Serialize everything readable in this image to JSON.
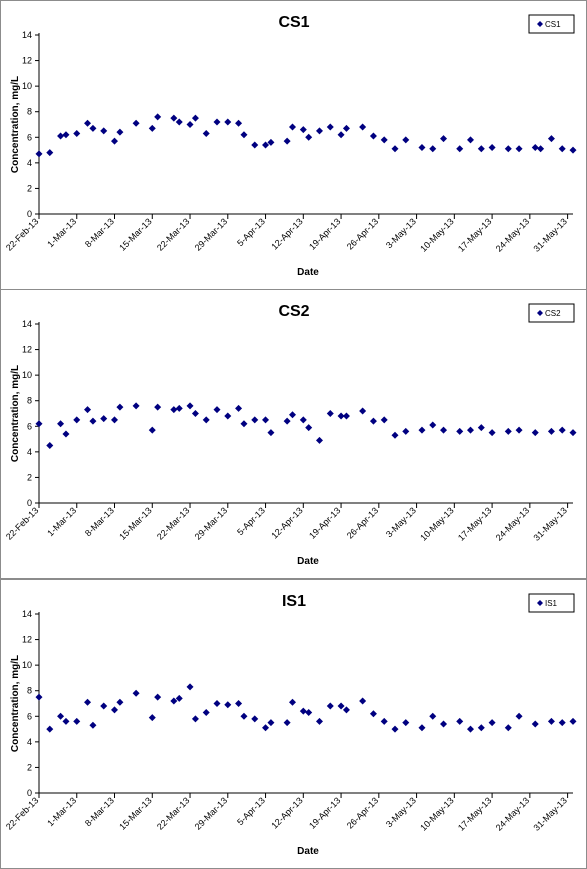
{
  "chart_data": [
    {
      "type": "scatter",
      "title": "CS1",
      "xlabel": "Date",
      "ylabel": "Concentration, mg/L",
      "legend": {
        "entries": [
          "CS1"
        ],
        "placement": "top-right"
      },
      "ylim": [
        0,
        14
      ],
      "yticks": [
        0,
        2,
        4,
        6,
        8,
        10,
        12,
        14
      ],
      "xlim": [
        "2013-02-22",
        "2013-06-01"
      ],
      "xticks": [
        "22-Feb-13",
        "1-Mar-13",
        "8-Mar-13",
        "15-Mar-13",
        "22-Mar-13",
        "29-Mar-13",
        "5-Apr-13",
        "12-Apr-13",
        "19-Apr-13",
        "26-Apr-13",
        "3-May-13",
        "10-May-13",
        "17-May-13",
        "24-May-13",
        "31-May-13"
      ],
      "grid": false,
      "color": "#000080",
      "x": [
        "2013-02-22",
        "2013-02-24",
        "2013-02-26",
        "2013-02-27",
        "2013-03-01",
        "2013-03-03",
        "2013-03-04",
        "2013-03-06",
        "2013-03-08",
        "2013-03-09",
        "2013-03-12",
        "2013-03-15",
        "2013-03-16",
        "2013-03-19",
        "2013-03-20",
        "2013-03-22",
        "2013-03-23",
        "2013-03-25",
        "2013-03-27",
        "2013-03-29",
        "2013-03-31",
        "2013-04-01",
        "2013-04-03",
        "2013-04-05",
        "2013-04-06",
        "2013-04-09",
        "2013-04-10",
        "2013-04-12",
        "2013-04-13",
        "2013-04-15",
        "2013-04-17",
        "2013-04-19",
        "2013-04-20",
        "2013-04-23",
        "2013-04-25",
        "2013-04-27",
        "2013-04-29",
        "2013-05-01",
        "2013-05-04",
        "2013-05-06",
        "2013-05-08",
        "2013-05-11",
        "2013-05-13",
        "2013-05-15",
        "2013-05-17",
        "2013-05-20",
        "2013-05-22",
        "2013-05-25",
        "2013-05-26",
        "2013-05-28",
        "2013-05-30",
        "2013-06-01"
      ],
      "y": [
        4.7,
        4.8,
        6.1,
        6.2,
        6.3,
        7.1,
        6.7,
        6.5,
        5.7,
        6.4,
        7.1,
        6.7,
        7.6,
        7.5,
        7.2,
        7.0,
        7.5,
        6.3,
        7.2,
        7.2,
        7.1,
        6.2,
        5.4,
        5.4,
        5.6,
        5.7,
        6.8,
        6.6,
        6.0,
        6.5,
        6.8,
        6.2,
        6.7,
        6.8,
        6.1,
        5.8,
        5.1,
        5.8,
        5.2,
        5.1,
        5.9,
        5.1,
        5.8,
        5.1,
        5.2,
        5.1,
        5.1,
        5.2,
        5.1,
        5.9,
        5.1,
        5.0
      ]
    },
    {
      "type": "scatter",
      "title": "CS2",
      "xlabel": "Date",
      "ylabel": "Concentration, mg/L",
      "legend": {
        "entries": [
          "CS2"
        ],
        "placement": "top-right"
      },
      "ylim": [
        0,
        14
      ],
      "yticks": [
        0,
        2,
        4,
        6,
        8,
        10,
        12,
        14
      ],
      "xlim": [
        "2013-02-22",
        "2013-06-01"
      ],
      "xticks": [
        "22-Feb-13",
        "1-Mar-13",
        "8-Mar-13",
        "15-Mar-13",
        "22-Mar-13",
        "29-Mar-13",
        "5-Apr-13",
        "12-Apr-13",
        "19-Apr-13",
        "26-Apr-13",
        "3-May-13",
        "10-May-13",
        "17-May-13",
        "24-May-13",
        "31-May-13"
      ],
      "grid": false,
      "color": "#000080",
      "x": [
        "2013-02-22",
        "2013-02-24",
        "2013-02-26",
        "2013-02-27",
        "2013-03-01",
        "2013-03-03",
        "2013-03-04",
        "2013-03-06",
        "2013-03-08",
        "2013-03-09",
        "2013-03-12",
        "2013-03-15",
        "2013-03-16",
        "2013-03-19",
        "2013-03-20",
        "2013-03-22",
        "2013-03-23",
        "2013-03-25",
        "2013-03-27",
        "2013-03-29",
        "2013-03-31",
        "2013-04-01",
        "2013-04-03",
        "2013-04-05",
        "2013-04-06",
        "2013-04-09",
        "2013-04-10",
        "2013-04-12",
        "2013-04-13",
        "2013-04-15",
        "2013-04-17",
        "2013-04-19",
        "2013-04-20",
        "2013-04-23",
        "2013-04-25",
        "2013-04-27",
        "2013-04-29",
        "2013-05-01",
        "2013-05-04",
        "2013-05-06",
        "2013-05-08",
        "2013-05-11",
        "2013-05-13",
        "2013-05-15",
        "2013-05-17",
        "2013-05-20",
        "2013-05-22",
        "2013-05-25",
        "2013-05-28",
        "2013-05-30",
        "2013-06-01"
      ],
      "y": [
        6.2,
        4.5,
        6.2,
        5.4,
        6.5,
        7.3,
        6.4,
        6.6,
        6.5,
        7.5,
        7.6,
        5.7,
        7.5,
        7.3,
        7.4,
        7.6,
        7.0,
        6.5,
        7.3,
        6.8,
        7.4,
        6.2,
        6.5,
        6.5,
        5.5,
        6.4,
        6.9,
        6.5,
        5.9,
        4.9,
        7.0,
        6.8,
        6.8,
        7.2,
        6.4,
        6.5,
        5.3,
        5.6,
        5.7,
        6.1,
        5.7,
        5.6,
        5.7,
        5.9,
        5.5,
        5.6,
        5.7,
        5.5,
        5.6,
        5.7,
        5.5
      ]
    },
    {
      "type": "scatter",
      "title": "IS1",
      "xlabel": "Date",
      "ylabel": "Concentration, mg/L",
      "legend": {
        "entries": [
          "IS1"
        ],
        "placement": "top-right"
      },
      "ylim": [
        0,
        14
      ],
      "yticks": [
        0,
        2,
        4,
        6,
        8,
        10,
        12,
        14
      ],
      "xlim": [
        "2013-02-22",
        "2013-06-01"
      ],
      "xticks": [
        "22-Feb-13",
        "1-Mar-13",
        "8-Mar-13",
        "15-Mar-13",
        "22-Mar-13",
        "29-Mar-13",
        "5-Apr-13",
        "12-Apr-13",
        "19-Apr-13",
        "26-Apr-13",
        "3-May-13",
        "10-May-13",
        "17-May-13",
        "24-May-13",
        "31-May-13"
      ],
      "grid": false,
      "color": "#000080",
      "x": [
        "2013-02-22",
        "2013-02-24",
        "2013-02-26",
        "2013-02-27",
        "2013-03-01",
        "2013-03-03",
        "2013-03-04",
        "2013-03-06",
        "2013-03-08",
        "2013-03-09",
        "2013-03-12",
        "2013-03-15",
        "2013-03-16",
        "2013-03-19",
        "2013-03-20",
        "2013-03-22",
        "2013-03-23",
        "2013-03-25",
        "2013-03-27",
        "2013-03-29",
        "2013-03-31",
        "2013-04-01",
        "2013-04-03",
        "2013-04-05",
        "2013-04-06",
        "2013-04-09",
        "2013-04-10",
        "2013-04-12",
        "2013-04-13",
        "2013-04-15",
        "2013-04-17",
        "2013-04-19",
        "2013-04-20",
        "2013-04-23",
        "2013-04-25",
        "2013-04-27",
        "2013-04-29",
        "2013-05-01",
        "2013-05-04",
        "2013-05-06",
        "2013-05-08",
        "2013-05-11",
        "2013-05-13",
        "2013-05-15",
        "2013-05-17",
        "2013-05-20",
        "2013-05-22",
        "2013-05-25",
        "2013-05-28",
        "2013-05-30",
        "2013-06-01"
      ],
      "y": [
        7.5,
        5.0,
        6.0,
        5.6,
        5.6,
        7.1,
        5.3,
        6.8,
        6.5,
        7.1,
        7.8,
        5.9,
        7.5,
        7.2,
        7.4,
        8.3,
        5.8,
        6.3,
        7.0,
        6.9,
        7.0,
        6.0,
        5.8,
        5.1,
        5.5,
        5.5,
        7.1,
        6.4,
        6.3,
        5.6,
        6.8,
        6.8,
        6.5,
        7.2,
        6.2,
        5.6,
        5.0,
        5.5,
        5.1,
        6.0,
        5.4,
        5.6,
        5.0,
        5.1,
        5.5,
        5.1,
        6.0,
        5.4,
        5.6,
        5.5,
        5.6
      ]
    }
  ]
}
